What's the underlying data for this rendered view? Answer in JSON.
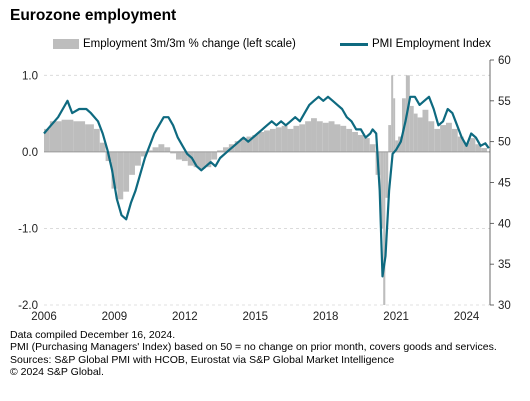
{
  "title": "Eurozone employment",
  "legend": {
    "bar_label": "Employment 3m/3m % change (left scale)",
    "line_label": "PMI Employment Index"
  },
  "notes": [
    "Data compiled December 16, 2024.",
    "PMI (Purchasing Managers' Index) based on 50 = no change on prior month, covers goods and services.",
    "Sources: S&P Global PMI with HCOB, Eurostat via S&P Global Market Intelligence",
    "© 2024 S&P Global."
  ],
  "chart_data": {
    "type": "bar+line",
    "title": "Eurozone employment",
    "x_ticks": [
      "2006",
      "2009",
      "2012",
      "2015",
      "2018",
      "2021",
      "2024"
    ],
    "x_range": [
      2006.0,
      2025.0
    ],
    "left_axis": {
      "range": [
        -2.0,
        1.2
      ],
      "ticks": [
        "1.0",
        "0.0",
        "-1.0",
        "-2.0"
      ],
      "tick_values": [
        1.0,
        0.0,
        -1.0,
        -2.0
      ]
    },
    "right_axis": {
      "range": [
        30,
        60
      ],
      "ticks": [
        "60",
        "55",
        "50",
        "45",
        "40",
        "35",
        "30"
      ],
      "tick_values": [
        60,
        55,
        50,
        45,
        40,
        35,
        30
      ]
    },
    "grid": "horizontal dashed",
    "colors": {
      "bars": "#bdbdbd",
      "line": "#0e6a80"
    },
    "series": [
      {
        "name": "Employment 3m/3m % change (left scale)",
        "type": "bar",
        "axis": "left",
        "points": [
          [
            2006.0,
            0.3
          ],
          [
            2006.5,
            0.4
          ],
          [
            2007.0,
            0.42
          ],
          [
            2007.5,
            0.4
          ],
          [
            2008.0,
            0.36
          ],
          [
            2008.25,
            0.3
          ],
          [
            2008.5,
            0.12
          ],
          [
            2008.75,
            -0.12
          ],
          [
            2009.0,
            -0.48
          ],
          [
            2009.25,
            -0.62
          ],
          [
            2009.5,
            -0.52
          ],
          [
            2009.75,
            -0.3
          ],
          [
            2010.0,
            -0.18
          ],
          [
            2010.25,
            -0.06
          ],
          [
            2010.5,
            0.02
          ],
          [
            2010.75,
            0.06
          ],
          [
            2011.0,
            0.1
          ],
          [
            2011.25,
            0.06
          ],
          [
            2011.5,
            -0.02
          ],
          [
            2011.75,
            -0.1
          ],
          [
            2012.0,
            -0.12
          ],
          [
            2012.25,
            -0.18
          ],
          [
            2012.5,
            -0.2
          ],
          [
            2012.75,
            -0.22
          ],
          [
            2013.0,
            -0.2
          ],
          [
            2013.25,
            -0.1
          ],
          [
            2013.5,
            0.02
          ],
          [
            2013.75,
            0.06
          ],
          [
            2014.0,
            0.1
          ],
          [
            2014.25,
            0.14
          ],
          [
            2014.5,
            0.18
          ],
          [
            2014.75,
            0.2
          ],
          [
            2015.0,
            0.22
          ],
          [
            2015.25,
            0.26
          ],
          [
            2015.5,
            0.28
          ],
          [
            2015.75,
            0.3
          ],
          [
            2016.0,
            0.32
          ],
          [
            2016.25,
            0.34
          ],
          [
            2016.5,
            0.3
          ],
          [
            2016.75,
            0.34
          ],
          [
            2017.0,
            0.36
          ],
          [
            2017.25,
            0.4
          ],
          [
            2017.5,
            0.44
          ],
          [
            2017.75,
            0.4
          ],
          [
            2018.0,
            0.38
          ],
          [
            2018.25,
            0.4
          ],
          [
            2018.5,
            0.36
          ],
          [
            2018.75,
            0.34
          ],
          [
            2019.0,
            0.3
          ],
          [
            2019.25,
            0.26
          ],
          [
            2019.5,
            0.22
          ],
          [
            2019.75,
            0.18
          ],
          [
            2020.0,
            0.1
          ],
          [
            2020.25,
            -0.3
          ],
          [
            2020.4,
            -1.0
          ],
          [
            2020.5,
            -2.0
          ],
          [
            2020.58,
            -0.6
          ],
          [
            2020.75,
            0.35
          ],
          [
            2020.83,
            1.0
          ],
          [
            2020.92,
            0.7
          ],
          [
            2021.0,
            0.15
          ],
          [
            2021.17,
            0.2
          ],
          [
            2021.33,
            0.7
          ],
          [
            2021.5,
            1.0
          ],
          [
            2021.67,
            0.6
          ],
          [
            2021.83,
            0.5
          ],
          [
            2022.0,
            0.45
          ],
          [
            2022.25,
            0.55
          ],
          [
            2022.5,
            0.4
          ],
          [
            2022.75,
            0.3
          ],
          [
            2023.0,
            0.35
          ],
          [
            2023.25,
            0.38
          ],
          [
            2023.5,
            0.3
          ],
          [
            2023.75,
            0.2
          ],
          [
            2024.0,
            0.12
          ],
          [
            2024.25,
            0.18
          ],
          [
            2024.5,
            0.1
          ],
          [
            2024.75,
            0.05
          ]
        ]
      },
      {
        "name": "PMI Employment Index",
        "type": "line",
        "axis": "right",
        "points": [
          [
            2006.0,
            51.0
          ],
          [
            2006.3,
            52.0
          ],
          [
            2006.6,
            53.0
          ],
          [
            2006.8,
            54.0
          ],
          [
            2007.0,
            55.0
          ],
          [
            2007.2,
            53.5
          ],
          [
            2007.5,
            54.0
          ],
          [
            2007.8,
            54.0
          ],
          [
            2008.0,
            53.5
          ],
          [
            2008.3,
            52.5
          ],
          [
            2008.5,
            51.0
          ],
          [
            2008.7,
            49.0
          ],
          [
            2008.9,
            46.5
          ],
          [
            2009.1,
            43.0
          ],
          [
            2009.3,
            41.0
          ],
          [
            2009.5,
            40.5
          ],
          [
            2009.7,
            42.5
          ],
          [
            2009.9,
            44.0
          ],
          [
            2010.1,
            46.0
          ],
          [
            2010.3,
            48.0
          ],
          [
            2010.5,
            49.5
          ],
          [
            2010.7,
            51.0
          ],
          [
            2010.9,
            52.0
          ],
          [
            2011.1,
            53.0
          ],
          [
            2011.3,
            53.0
          ],
          [
            2011.5,
            52.0
          ],
          [
            2011.7,
            50.5
          ],
          [
            2011.9,
            49.5
          ],
          [
            2012.1,
            48.5
          ],
          [
            2012.3,
            48.0
          ],
          [
            2012.5,
            47.0
          ],
          [
            2012.7,
            46.5
          ],
          [
            2012.9,
            47.0
          ],
          [
            2013.1,
            47.5
          ],
          [
            2013.3,
            47.0
          ],
          [
            2013.5,
            48.0
          ],
          [
            2013.7,
            48.5
          ],
          [
            2013.9,
            49.0
          ],
          [
            2014.1,
            49.5
          ],
          [
            2014.3,
            50.0
          ],
          [
            2014.5,
            50.5
          ],
          [
            2014.7,
            50.0
          ],
          [
            2014.9,
            50.5
          ],
          [
            2015.1,
            51.0
          ],
          [
            2015.3,
            51.5
          ],
          [
            2015.5,
            52.0
          ],
          [
            2015.7,
            52.5
          ],
          [
            2015.9,
            52.0
          ],
          [
            2016.1,
            52.5
          ],
          [
            2016.3,
            52.0
          ],
          [
            2016.5,
            52.5
          ],
          [
            2016.7,
            53.0
          ],
          [
            2016.9,
            52.5
          ],
          [
            2017.1,
            53.5
          ],
          [
            2017.3,
            54.5
          ],
          [
            2017.5,
            55.0
          ],
          [
            2017.7,
            55.5
          ],
          [
            2017.9,
            55.0
          ],
          [
            2018.1,
            55.5
          ],
          [
            2018.3,
            55.0
          ],
          [
            2018.5,
            54.5
          ],
          [
            2018.7,
            54.0
          ],
          [
            2018.9,
            53.0
          ],
          [
            2019.1,
            52.5
          ],
          [
            2019.3,
            51.5
          ],
          [
            2019.5,
            51.5
          ],
          [
            2019.7,
            50.5
          ],
          [
            2019.9,
            51.0
          ],
          [
            2020.0,
            51.5
          ],
          [
            2020.15,
            51.0
          ],
          [
            2020.3,
            44.0
          ],
          [
            2020.42,
            33.5
          ],
          [
            2020.55,
            36.0
          ],
          [
            2020.7,
            44.0
          ],
          [
            2020.85,
            48.5
          ],
          [
            2021.0,
            49.0
          ],
          [
            2021.2,
            50.0
          ],
          [
            2021.4,
            52.5
          ],
          [
            2021.6,
            55.5
          ],
          [
            2021.8,
            55.5
          ],
          [
            2022.0,
            54.5
          ],
          [
            2022.2,
            55.0
          ],
          [
            2022.4,
            55.5
          ],
          [
            2022.6,
            54.0
          ],
          [
            2022.8,
            52.0
          ],
          [
            2023.0,
            52.5
          ],
          [
            2023.2,
            54.0
          ],
          [
            2023.4,
            53.5
          ],
          [
            2023.6,
            52.0
          ],
          [
            2023.8,
            50.5
          ],
          [
            2024.0,
            49.5
          ],
          [
            2024.2,
            51.0
          ],
          [
            2024.4,
            50.5
          ],
          [
            2024.6,
            49.5
          ],
          [
            2024.8,
            49.8
          ],
          [
            2024.95,
            49.2
          ]
        ]
      }
    ]
  }
}
